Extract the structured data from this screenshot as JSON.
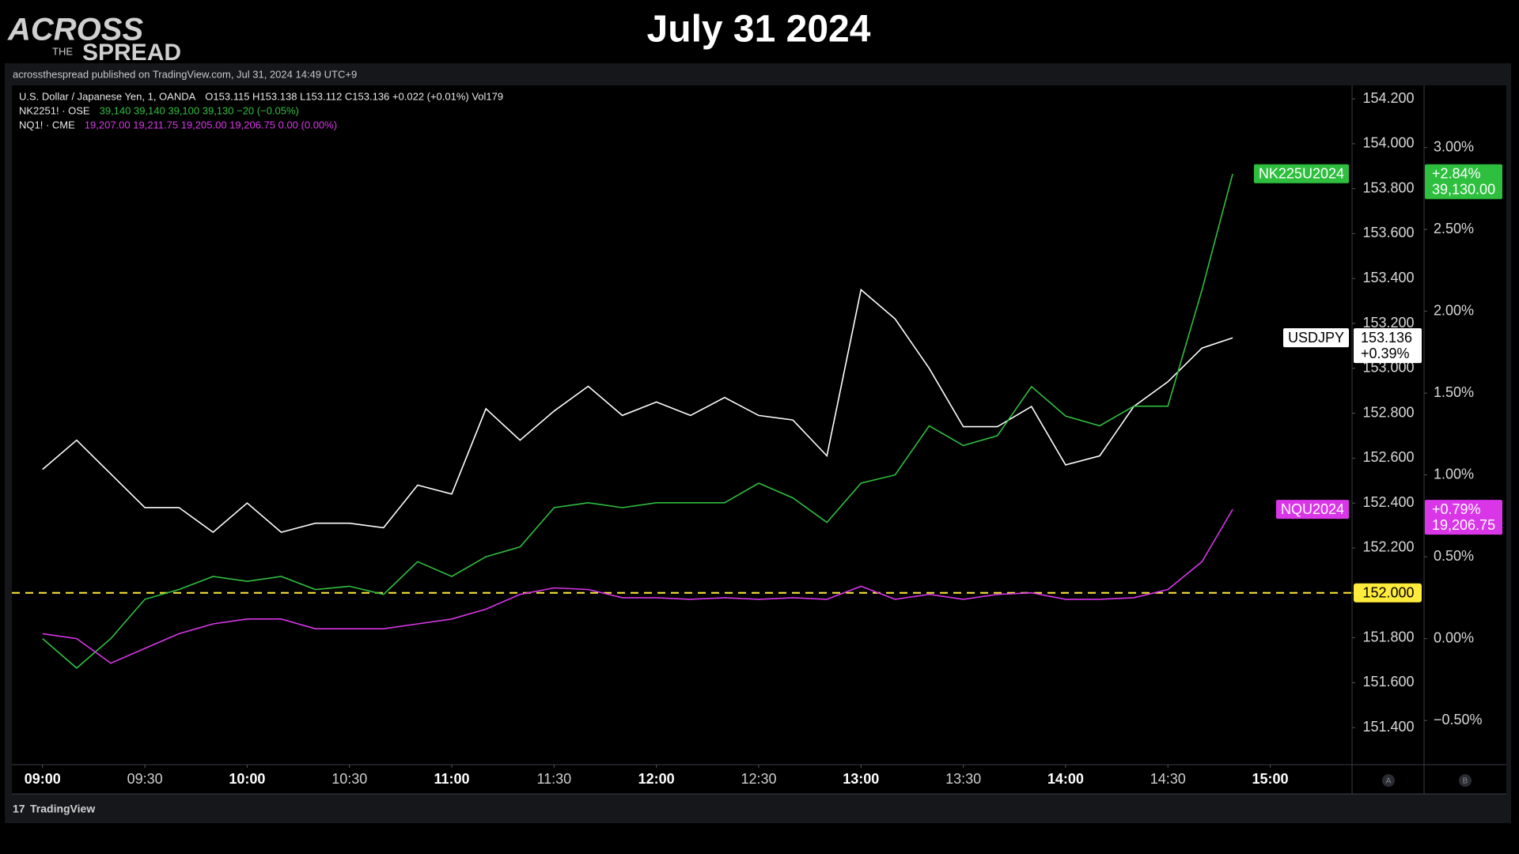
{
  "logo": {
    "line1": "ACROSS",
    "line2": "THE",
    "line3": "SPREAD"
  },
  "chart_data": {
    "type": "line",
    "title": "July 31 2024",
    "publisher": "acrossthespread published on TradingView.com, Jul 31, 2024 14:49 UTC+9",
    "brand": "TradingView",
    "axis_buttons": [
      "A",
      "B"
    ],
    "x": [
      "09:00",
      "09:10",
      "09:20",
      "09:30",
      "09:40",
      "09:50",
      "10:00",
      "10:10",
      "10:20",
      "10:30",
      "10:40",
      "10:50",
      "11:00",
      "11:10",
      "11:20",
      "11:30",
      "11:40",
      "11:50",
      "12:00",
      "12:10",
      "12:20",
      "12:30",
      "12:40",
      "12:50",
      "13:00",
      "13:10",
      "13:20",
      "13:30",
      "13:40",
      "13:50",
      "14:00",
      "14:10",
      "14:20",
      "14:30",
      "14:40",
      "14:49"
    ],
    "xlim": [
      "08:51",
      "15:24"
    ],
    "xticks": [
      "09:00",
      "09:30",
      "10:00",
      "10:30",
      "11:00",
      "11:30",
      "12:00",
      "12:30",
      "13:00",
      "13:30",
      "14:00",
      "14:30",
      "15:00"
    ],
    "ylim": [
      151.235,
      154.26
    ],
    "yticks": [
      {
        "value": 151.4,
        "label": "151.400"
      },
      {
        "value": 151.6,
        "label": "151.600"
      },
      {
        "value": 151.8,
        "label": "151.800"
      },
      {
        "value": 152.0,
        "label": "152.000"
      },
      {
        "value": 152.2,
        "label": "152.200"
      },
      {
        "value": 152.4,
        "label": "152.400"
      },
      {
        "value": 152.6,
        "label": "152.600"
      },
      {
        "value": 152.8,
        "label": "152.800"
      },
      {
        "value": 153.0,
        "label": "153.000"
      },
      {
        "value": 153.2,
        "label": "153.200"
      },
      {
        "value": 153.4,
        "label": "153.400"
      },
      {
        "value": 153.6,
        "label": "153.600"
      },
      {
        "value": 153.8,
        "label": "153.800"
      },
      {
        "value": 154.0,
        "label": "154.000"
      },
      {
        "value": 154.2,
        "label": "154.200"
      }
    ],
    "y2lim": [
      -0.77,
      3.38
    ],
    "y2ticks": [
      {
        "value": -0.5,
        "label": "−0.50%"
      },
      {
        "value": 0,
        "label": "0.00%"
      },
      {
        "value": 0.5,
        "label": "0.50%"
      },
      {
        "value": 1,
        "label": "1.00%"
      },
      {
        "value": 1.5,
        "label": "1.50%"
      },
      {
        "value": 2,
        "label": "2.00%"
      },
      {
        "value": 2.5,
        "label": "2.50%"
      },
      {
        "value": 3,
        "label": "3.00%"
      }
    ],
    "hline": {
      "value": 152.0,
      "label": "152.000",
      "color": "#ffeb3b"
    },
    "series": [
      {
        "name": "USDJPY",
        "legend": "U.S. Dollar / Japanese Yen, 1, OANDA",
        "quote": "O153.115  H153.138  L153.112  C153.136  +0.022 (+0.01%)  Vol179",
        "color": "#ffffff",
        "axis": "y",
        "values": [
          152.55,
          152.68,
          152.53,
          152.38,
          152.38,
          152.27,
          152.4,
          152.27,
          152.31,
          152.31,
          152.29,
          152.48,
          152.44,
          152.82,
          152.68,
          152.81,
          152.92,
          152.79,
          152.85,
          152.79,
          152.87,
          152.79,
          152.77,
          152.61,
          153.35,
          153.22,
          153.0,
          152.74,
          152.74,
          152.83,
          152.57,
          152.61,
          152.83,
          152.94,
          153.09,
          153.136
        ],
        "tag": [
          "153.136",
          "+0.39%"
        ]
      },
      {
        "name": "NK225U2024",
        "legend": "NK2251! · OSE",
        "quote": "39,140  39,140  39,100  39,130  −20 (−0.05%)",
        "color": "#2fbf3f",
        "axis": "y2",
        "values": [
          0.0,
          -0.18,
          0.0,
          0.24,
          0.3,
          0.38,
          0.35,
          0.38,
          0.3,
          0.32,
          0.27,
          0.47,
          0.38,
          0.5,
          0.56,
          0.8,
          0.83,
          0.8,
          0.83,
          0.83,
          0.83,
          0.95,
          0.86,
          0.71,
          0.95,
          1.0,
          1.3,
          1.18,
          1.24,
          1.54,
          1.36,
          1.3,
          1.42,
          1.42,
          2.13,
          2.84
        ],
        "tag": [
          "+2.84%",
          "39,130.00"
        ]
      },
      {
        "name": "NQU2024",
        "legend": "NQ1! · CME",
        "quote": "19,207.00  19,211.75  19,205.00  19,206.75  0.00 (0.00%)",
        "color": "#d936e8",
        "axis": "y2",
        "values": [
          0.03,
          0.0,
          -0.15,
          -0.06,
          0.03,
          0.09,
          0.12,
          0.12,
          0.06,
          0.06,
          0.06,
          0.09,
          0.12,
          0.18,
          0.27,
          0.31,
          0.3,
          0.25,
          0.25,
          0.24,
          0.25,
          0.24,
          0.25,
          0.24,
          0.32,
          0.24,
          0.27,
          0.24,
          0.27,
          0.28,
          0.24,
          0.24,
          0.25,
          0.3,
          0.47,
          0.79
        ],
        "tag": [
          "+0.79%",
          "19,206.75"
        ]
      }
    ]
  }
}
